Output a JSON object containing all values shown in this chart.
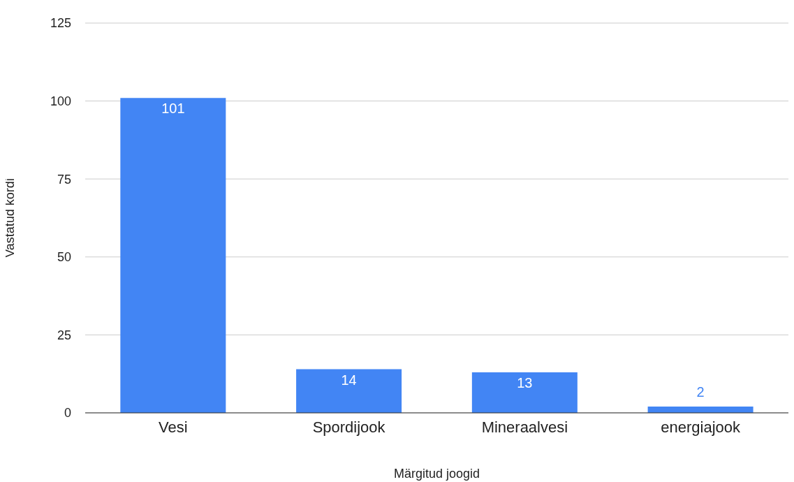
{
  "chart_data": {
    "type": "bar",
    "xlabel": "Märgitud joogid",
    "ylabel": "Vastatud kordi",
    "categories": [
      "Vesi",
      "Spordijook",
      "Mineraalvesi",
      "energiajook"
    ],
    "values": [
      101,
      14,
      13,
      2
    ],
    "color": "#4285f4",
    "ylim": [
      0,
      125
    ],
    "yticks": [
      0,
      25,
      50,
      75,
      100,
      125
    ],
    "grid": "y",
    "data_labels": true
  }
}
